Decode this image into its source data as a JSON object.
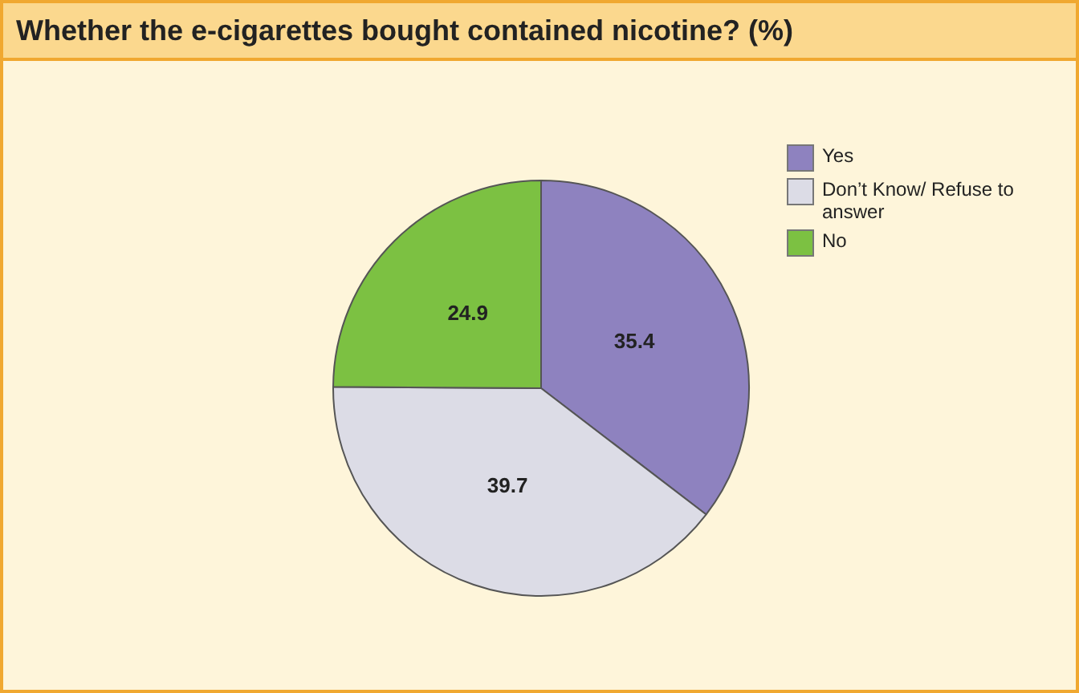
{
  "chart_data": {
    "type": "pie",
    "title": "Whether the e-cigarettes bought contained nicotine? (%)",
    "categories": [
      "Yes",
      "Don’t Know/ Refuse to answer",
      "No"
    ],
    "values": [
      35.4,
      39.7,
      24.9
    ],
    "colors": [
      "#8e82bf",
      "#dcdce6",
      "#7cc142"
    ],
    "data_labels": true,
    "legend": "top right"
  }
}
